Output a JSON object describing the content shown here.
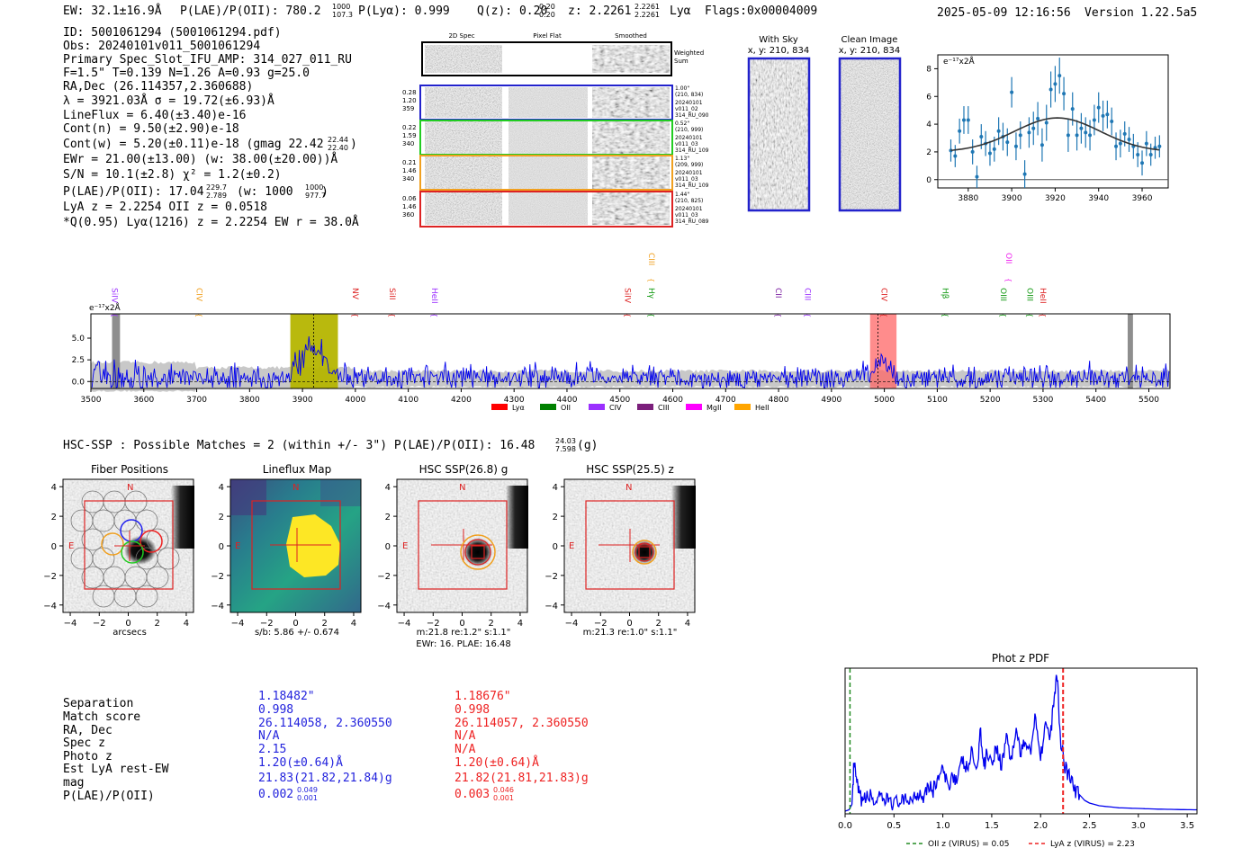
{
  "header": {
    "ew": "EW: 32.1±16.9Å",
    "plae_label": "P(LAE)/P(OII): 780.2",
    "plae_hi": "1000",
    "plae_lo": "107.3",
    "plya": "P(Lyα): 0.999",
    "qz_label": "Q(z): 0.20",
    "qz_hi": "0.20",
    "qz_lo": "0.20",
    "z_label": "z: 2.2261",
    "z_hi": "2.2261",
    "z_lo": "2.2261",
    "z_line": "Lyα",
    "flags": "Flags:0x00004009",
    "datetime": "2025-05-09 12:16:56",
    "version": "Version 1.22.5a5"
  },
  "info": {
    "lines": [
      "ID: 5001061294 (5001061294.pdf)",
      "Obs: 20240101v011_5001061294",
      "Primary Spec_Slot_IFU_AMP: 314_027_011_RU",
      "F=1.5\"  T=0.139  N=1.26  A=0.93  g=25.0",
      "RA,Dec (26.114357,2.360688)",
      "λ = 3921.03Å  σ = 19.72(±6.93)Å",
      "LineFlux = 6.40(±3.40)e-16",
      "Cont(n) = 9.50(±2.90)e-18",
      "Cont(w) = 5.20(±0.11)e-18 (gmag 22.42",
      "EWr = 21.00(±13.00) (w: 38.00(±20.00))Å",
      "S/N = 10.1(±2.8)  χ² = 1.2(±0.2)",
      "P(LAE)/P(OII): 17.04",
      "LyA z = 2.2254  OII z = 0.0518",
      "*Q(0.95) Lyα(1216) z = 2.2254  EW r = 38.0Å"
    ],
    "gmag_hi": "22.44",
    "gmag_lo": "22.40",
    "plae_hi": "229.7",
    "plae_lo": "2.789",
    "plae_w": "(w: 1000",
    "plae_w_hi": "1000",
    "plae_w_lo": "977.7"
  },
  "cutouts": {
    "col_headers": [
      "2D Spec",
      "Pixel Flat",
      "Smoothed"
    ],
    "weighted_sum": [
      "Weighted",
      "Sum"
    ],
    "rows": [
      {
        "left": [
          "0.28",
          "1.20",
          "359"
        ],
        "right": [
          "1.00\"",
          "(210, 834)",
          "20240101",
          "v011_02",
          "314_RU_090"
        ],
        "color": "#2222cc"
      },
      {
        "left": [
          "0.22",
          "1.59",
          "340"
        ],
        "right": [
          "0.52\"",
          "(210, 999)",
          "20240101",
          "v011_03",
          "314_RU_109"
        ],
        "color": "#22cc22"
      },
      {
        "left": [
          "0.21",
          "1.46",
          "340"
        ],
        "right": [
          "1.13\"",
          "(209, 999)",
          "20240101",
          "v011_03",
          "314_RU_109"
        ],
        "color": "#f0a020"
      },
      {
        "left": [
          "0.06",
          "1.46",
          "360"
        ],
        "right": [
          "1.44\"",
          "(210, 825)",
          "20240101",
          "v011_03",
          "314_RU_089"
        ],
        "color": "#dd2222"
      }
    ],
    "with_sky": [
      "With Sky",
      "x, y: 210, 834"
    ],
    "clean_image": [
      "Clean Image",
      "x, y: 210, 834"
    ]
  },
  "fit_plot": {
    "unit_label": "e⁻¹⁷x2Å",
    "x_ticks": [
      "3880",
      "3900",
      "3920",
      "3940",
      "3960"
    ],
    "y_ticks": [
      "0",
      "2",
      "4",
      "6",
      "8"
    ]
  },
  "spectrum": {
    "unit_label": "e⁻¹⁷x2Å",
    "x_ticks": [
      "3500",
      "3600",
      "3700",
      "3800",
      "3900",
      "4000",
      "4100",
      "4200",
      "4300",
      "4400",
      "4500",
      "4600",
      "4700",
      "4800",
      "4900",
      "5000",
      "5100",
      "5200",
      "5300",
      "5400",
      "5500"
    ],
    "y_ticks": [
      "5.0",
      "2.5",
      "0.0"
    ],
    "lines": [
      {
        "label": "SiIV",
        "wl": 3540,
        "color": "#9b30ff",
        "row": 1
      },
      {
        "label": "CIV",
        "wl": 3700,
        "color": "#f0a020",
        "row": 1
      },
      {
        "label": "NV",
        "wl": 3995,
        "color": "#dd2222",
        "row": 1
      },
      {
        "label": "SiII",
        "wl": 4065,
        "color": "#dd2222",
        "row": 1
      },
      {
        "label": "HeII",
        "wl": 4145,
        "color": "#9b30ff",
        "row": 1
      },
      {
        "label": "SiIV",
        "wl": 4510,
        "color": "#dd2222",
        "row": 1
      },
      {
        "label": "CIII",
        "wl": 4555,
        "color": "#f0a020",
        "row": 0
      },
      {
        "label": "Hγ",
        "wl": 4555,
        "color": "#119911",
        "row": 1
      },
      {
        "label": "CII",
        "wl": 4795,
        "color": "#7b1fa2",
        "row": 1
      },
      {
        "label": "CIII",
        "wl": 4850,
        "color": "#9b30ff",
        "row": 1
      },
      {
        "label": "CIV",
        "wl": 4995,
        "color": "#dd2222",
        "row": 1
      },
      {
        "label": "Hβ",
        "wl": 5110,
        "color": "#119911",
        "row": 1
      },
      {
        "label": "OII",
        "wl": 5230,
        "color": "#ee22ee",
        "row": 0
      },
      {
        "label": "OIII",
        "wl": 5220,
        "color": "#119911",
        "row": 1
      },
      {
        "label": "OIII",
        "wl": 5270,
        "color": "#119911",
        "row": 1
      },
      {
        "label": "HeII",
        "wl": 5295,
        "color": "#dd2222",
        "row": 1
      }
    ],
    "legend": [
      {
        "label": "Lyα",
        "color": "#ff0000"
      },
      {
        "label": "OII",
        "color": "#008000"
      },
      {
        "label": "CIV",
        "color": "#9b30ff"
      },
      {
        "label": "CIII",
        "color": "#7b1f7b"
      },
      {
        "label": "MgII",
        "color": "#ff00ff"
      },
      {
        "label": "HeII",
        "color": "#ffa500"
      }
    ]
  },
  "hsc": {
    "title_main": "HSC-SSP : Possible Matches = 2 (within +/- 3\")  P(LAE)/P(OII): 16.48",
    "title_hi": "24.03",
    "title_lo": "7.598",
    "title_tail": "(g)",
    "panels": [
      {
        "title": "Fiber Positions",
        "caption": [
          "arcsecs"
        ]
      },
      {
        "title": "Lineflux Map",
        "caption": [
          "s/b: 5.86 +/- 0.674"
        ]
      },
      {
        "title": "HSC SSP(26.8) g",
        "caption": [
          "m:21.8  re:1.2\"  s:1.1\"",
          "EWr: 16. PLAE: 16.48"
        ]
      },
      {
        "title": "HSC SSP(25.5) z",
        "caption": [
          "m:21.3  re:1.0\"  s:1.1\""
        ]
      }
    ],
    "axis_ticks_y": [
      "4",
      "2",
      "0",
      "−2",
      "−4"
    ],
    "axis_ticks_x": [
      "−4",
      "−2",
      "0",
      "2",
      "4"
    ],
    "compass_n": "N",
    "compass_e": "E"
  },
  "matches": {
    "labels": [
      "Separation",
      "Match score",
      "RA, Dec",
      "Spec z",
      "Photo z",
      "Est LyA rest-EW",
      "mag",
      "P(LAE)/P(OII)"
    ],
    "blue": [
      "1.18482\"",
      "0.998",
      "26.114058, 2.360550",
      "N/A",
      "2.15",
      "1.20(±0.64)Å",
      "21.83(21.82,21.84)g",
      "0.002"
    ],
    "blue_plae_hi": "0.049",
    "blue_plae_lo": "0.001",
    "red": [
      "1.18676\"",
      "0.998",
      "26.114057, 2.360550",
      "N/A",
      "N/A",
      "1.20(±0.64)Å",
      "21.82(21.81,21.83)g",
      "0.003"
    ],
    "red_plae_hi": "0.046",
    "red_plae_lo": "0.001"
  },
  "photz": {
    "title": "Phot z PDF",
    "x_ticks": [
      "0.0",
      "0.5",
      "1.0",
      "1.5",
      "2.0",
      "2.5",
      "3.0",
      "3.5"
    ],
    "legend_oii": "OII z (VIRUS) = 0.05",
    "legend_lya": "LyA z (VIRUS) = 2.23",
    "oii_z": 0.05,
    "lya_z": 2.23,
    "xlim": [
      0,
      3.6
    ]
  },
  "chart_data": [
    {
      "type": "scatter",
      "xlim": [
        3866,
        3972
      ],
      "ylim": [
        -0.6,
        9
      ],
      "x": [
        3872,
        3874,
        3876,
        3878,
        3880,
        3882,
        3884,
        3886,
        3888,
        3890,
        3892,
        3894,
        3896,
        3898,
        3900,
        3902,
        3904,
        3906,
        3908,
        3910,
        3912,
        3914,
        3916,
        3918,
        3920,
        3922,
        3924,
        3926,
        3928,
        3930,
        3932,
        3934,
        3936,
        3938,
        3940,
        3942,
        3944,
        3946,
        3948,
        3950,
        3952,
        3954,
        3956,
        3958,
        3960,
        3962,
        3964,
        3966,
        3968
      ],
      "y": [
        2.1,
        1.7,
        3.5,
        4.3,
        4.3,
        2.0,
        0.2,
        3.1,
        2.6,
        1.9,
        2.2,
        3.5,
        3.1,
        2.7,
        6.3,
        2.4,
        3.2,
        0.4,
        3.4,
        3.7,
        4.4,
        2.5,
        4.1,
        6.5,
        6.9,
        7.5,
        6.2,
        3.2,
        5.1,
        3.2,
        3.7,
        3.4,
        3.2,
        4.3,
        5.2,
        4.6,
        4.7,
        4.2,
        2.4,
        2.6,
        3.3,
        2.9,
        2.4,
        1.8,
        1.2,
        2.6,
        1.8,
        2.3,
        2.4
      ],
      "err": [
        0.8,
        0.8,
        0.9,
        1.0,
        1.0,
        0.9,
        0.8,
        0.9,
        0.9,
        0.9,
        0.9,
        1.0,
        1.0,
        1.0,
        1.1,
        1.0,
        1.0,
        1.0,
        1.1,
        1.2,
        1.2,
        1.2,
        1.3,
        1.3,
        1.3,
        1.3,
        1.2,
        1.2,
        1.2,
        1.1,
        1.1,
        1.1,
        1.1,
        1.1,
        1.1,
        1.1,
        1.0,
        1.0,
        1.0,
        1.0,
        0.9,
        0.9,
        0.9,
        0.9,
        0.9,
        0.9,
        0.8,
        0.8,
        0.8
      ],
      "fit": {
        "amplitude": 2.45,
        "center": 3921.03,
        "sigma": 19.72,
        "continuum": 2.0
      }
    },
    {
      "type": "line",
      "xlim": [
        3500,
        5540
      ],
      "ylim": [
        -0.8,
        7.8
      ],
      "highlight_regions": [
        {
          "x0": 3540,
          "x1": 3555,
          "color": "#888888"
        },
        {
          "x0": 3877,
          "x1": 3967,
          "color": "#b5b500"
        },
        {
          "x0": 4973,
          "x1": 5023,
          "color": "#ff6666"
        },
        {
          "x0": 5460,
          "x1": 5470,
          "color": "#888888"
        }
      ],
      "marked_wl": [
        3921,
        4988
      ],
      "flux_model": {
        "noise": 1.1,
        "peaks": [
          {
            "wl": 3921,
            "amp": 3.4,
            "sigma": 25
          },
          {
            "wl": 4990,
            "amp": 1.4,
            "sigma": 18
          }
        ]
      }
    },
    {
      "type": "line",
      "xlim": [
        0,
        3.6
      ],
      "curve": [
        [
          0.0,
          0.0
        ],
        [
          0.04,
          0.01
        ],
        [
          0.07,
          0.05
        ],
        [
          0.09,
          0.35
        ],
        [
          0.12,
          0.2
        ],
        [
          0.15,
          0.1
        ],
        [
          0.2,
          0.08
        ],
        [
          0.25,
          0.12
        ],
        [
          0.3,
          0.07
        ],
        [
          0.35,
          0.09
        ],
        [
          0.4,
          0.06
        ],
        [
          0.45,
          0.1
        ],
        [
          0.5,
          0.05
        ],
        [
          0.55,
          0.08
        ],
        [
          0.6,
          0.06
        ],
        [
          0.65,
          0.09
        ],
        [
          0.7,
          0.1
        ],
        [
          0.75,
          0.14
        ],
        [
          0.8,
          0.12
        ],
        [
          0.85,
          0.2
        ],
        [
          0.9,
          0.15
        ],
        [
          0.95,
          0.25
        ],
        [
          1.0,
          0.3
        ],
        [
          1.05,
          0.18
        ],
        [
          1.1,
          0.28
        ],
        [
          1.15,
          0.22
        ],
        [
          1.2,
          0.38
        ],
        [
          1.25,
          0.3
        ],
        [
          1.3,
          0.45
        ],
        [
          1.35,
          0.27
        ],
        [
          1.38,
          0.62
        ],
        [
          1.42,
          0.33
        ],
        [
          1.45,
          0.45
        ],
        [
          1.5,
          0.36
        ],
        [
          1.55,
          0.48
        ],
        [
          1.6,
          0.33
        ],
        [
          1.65,
          0.56
        ],
        [
          1.7,
          0.38
        ],
        [
          1.75,
          0.6
        ],
        [
          1.8,
          0.42
        ],
        [
          1.85,
          0.52
        ],
        [
          1.9,
          0.47
        ],
        [
          1.95,
          0.72
        ],
        [
          2.0,
          0.4
        ],
        [
          2.05,
          0.66
        ],
        [
          2.1,
          0.52
        ],
        [
          2.14,
          0.88
        ],
        [
          2.17,
          1.0
        ],
        [
          2.2,
          0.56
        ],
        [
          2.25,
          0.33
        ],
        [
          2.3,
          0.25
        ],
        [
          2.35,
          0.15
        ],
        [
          2.4,
          0.12
        ],
        [
          2.45,
          0.08
        ],
        [
          2.5,
          0.06
        ],
        [
          2.6,
          0.04
        ],
        [
          2.8,
          0.025
        ],
        [
          3.0,
          0.02
        ],
        [
          3.2,
          0.015
        ],
        [
          3.4,
          0.012
        ],
        [
          3.6,
          0.01
        ]
      ]
    }
  ]
}
